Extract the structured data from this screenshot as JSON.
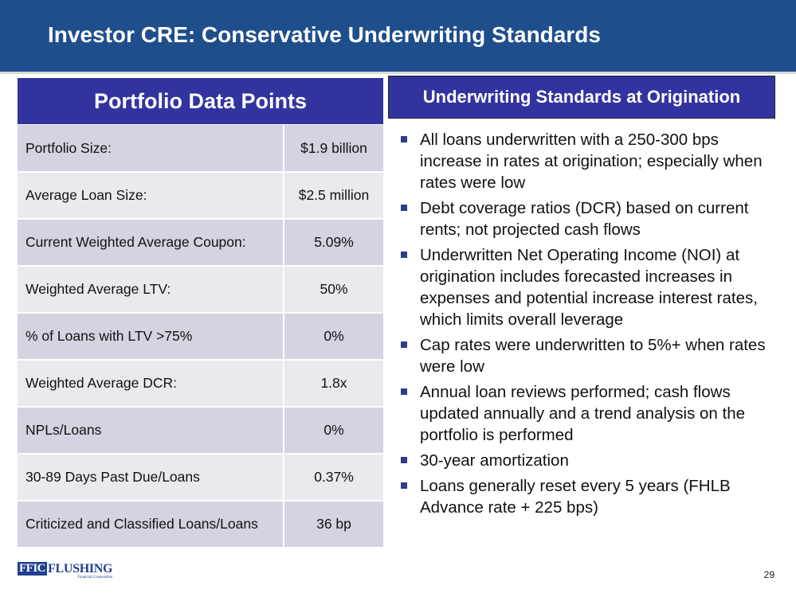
{
  "slide": {
    "title": "Investor CRE: Conservative Underwriting Standards",
    "page_number": "29"
  },
  "left_panel": {
    "header": "Portfolio Data Points",
    "rows": [
      {
        "label": "Portfolio Size:",
        "value": "$1.9 billion"
      },
      {
        "label": "Average Loan Size:",
        "value": "$2.5 million"
      },
      {
        "label": "Current Weighted Average Coupon:",
        "value": "5.09%"
      },
      {
        "label": "Weighted Average LTV:",
        "value": "50%"
      },
      {
        "label": "% of Loans with LTV >75%",
        "value": "0%"
      },
      {
        "label": "Weighted Average DCR:",
        "value": "1.8x"
      },
      {
        "label": "NPLs/Loans",
        "value": "0%"
      },
      {
        "label": "30-89 Days Past Due/Loans",
        "value": "0.37%"
      },
      {
        "label": "Criticized and Classified Loans/Loans",
        "value": "36 bp"
      }
    ]
  },
  "right_panel": {
    "header": "Underwriting Standards at Origination",
    "bullets": [
      "All loans underwritten with a 250-300 bps increase in rates at origination; especially when rates were low",
      "Debt coverage ratios (DCR) based on current rents; not projected cash flows",
      "Underwritten Net Operating Income (NOI) at origination includes forecasted increases in expenses and potential increase interest rates, which limits overall leverage",
      "Cap rates were underwritten to 5%+ when rates were low",
      "Annual loan reviews performed; cash flows updated annually and a trend analysis on the portfolio is performed",
      "30-year amortization",
      "Loans generally reset every 5 years (FHLB Advance rate + 225 bps)"
    ]
  },
  "logo": {
    "mark": "FFIC",
    "name": "FLUSHING",
    "subtitle": "Financial Corporation"
  },
  "colors": {
    "title_bar": "#1f4e8c",
    "panel_header": "#3333a0",
    "row_dark": "#d3d3e1",
    "row_light": "#e9e9ef",
    "bullet": "#2e3c8e"
  }
}
